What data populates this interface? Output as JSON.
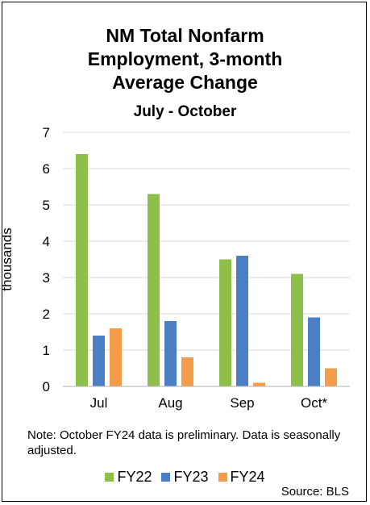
{
  "chart_data": {
    "type": "bar",
    "title_lines": [
      "NM Total Nonfarm",
      "Employment, 3-month",
      "Average Change"
    ],
    "subtitle": "July - October",
    "ylabel": "thousands",
    "xlabel": "",
    "categories": [
      "Jul",
      "Aug",
      "Sep",
      "Oct*"
    ],
    "series": [
      {
        "name": "FY22",
        "color": "#8ebf48",
        "values": [
          6.4,
          5.3,
          3.5,
          3.1
        ]
      },
      {
        "name": "FY23",
        "color": "#4a7fc4",
        "values": [
          1.4,
          1.8,
          3.6,
          1.9
        ]
      },
      {
        "name": "FY24",
        "color": "#f39c4a",
        "values": [
          1.6,
          0.8,
          0.1,
          0.5
        ]
      }
    ],
    "ylim": [
      0,
      7
    ],
    "yticks": [
      0,
      1,
      2,
      3,
      4,
      5,
      6,
      7
    ],
    "grid": true,
    "legend_position": "bottom"
  },
  "note": "Note: October FY24 data is preliminary. Data is seasonally adjusted.",
  "source": "Source: BLS",
  "colors": {
    "gridline": "#d9d9d9",
    "axis": "#bfbfbf"
  }
}
